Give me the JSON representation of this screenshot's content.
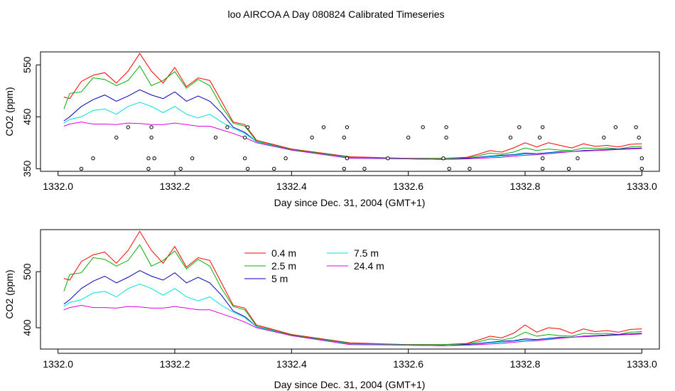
{
  "figure_title": "loo AIRCOA A  Day 080824  Calibrated Timeseries",
  "legend_items": [
    {
      "label": "0.4 m",
      "color": "#ff0000"
    },
    {
      "label": "2.5 m",
      "color": "#00b000"
    },
    {
      "label": "5 m",
      "color": "#0000c0"
    },
    {
      "label": "7.5 m",
      "color": "#00e0e0"
    },
    {
      "label": "24.4 m",
      "color": "#e000e0"
    }
  ],
  "chart_data": [
    {
      "type": "line",
      "title": "",
      "xlabel": "Day since Dec. 31, 2004 (GMT+1)",
      "ylabel": "CO2 (ppm)",
      "xlim": [
        1331.97,
        1333.03
      ],
      "ylim": [
        345,
        575
      ],
      "xticks": [
        "1332.0",
        "1332.2",
        "1332.4",
        "1332.6",
        "1332.8",
        "1333.0"
      ],
      "yticks": [
        "350",
        "450",
        "550"
      ],
      "grid": false,
      "legend": "none",
      "marker_series": {
        "x": [
          1332.04,
          1332.06,
          1332.1,
          1332.12,
          1332.155,
          1332.155,
          1332.16,
          1332.16,
          1332.165,
          1332.21,
          1332.23,
          1332.27,
          1332.29,
          1332.32,
          1332.32,
          1332.325,
          1332.325,
          1332.37,
          1332.39,
          1332.435,
          1332.455,
          1332.49,
          1332.49,
          1332.495,
          1332.495,
          1332.525,
          1332.565,
          1332.6,
          1332.625,
          1332.66,
          1332.665,
          1332.665,
          1332.67,
          1332.705,
          1332.775,
          1332.79,
          1332.825,
          1332.83,
          1332.83,
          1332.83,
          1332.875,
          1332.89,
          1332.935,
          1332.955,
          1332.99,
          1332.995,
          1333.0,
          1333.0
        ],
        "y": [
          350,
          370,
          410,
          430,
          350,
          370,
          430,
          410,
          370,
          350,
          370,
          410,
          430,
          370,
          410,
          350,
          430,
          350,
          370,
          410,
          430,
          350,
          410,
          370,
          430,
          350,
          370,
          410,
          430,
          370,
          410,
          430,
          350,
          350,
          410,
          430,
          410,
          370,
          350,
          430,
          350,
          370,
          410,
          430,
          430,
          410,
          370,
          350
        ]
      },
      "series": [
        {
          "name": "0.4 m",
          "color": "#ff0000",
          "x": [
            1332.01,
            1332.02,
            1332.04,
            1332.06,
            1332.08,
            1332.1,
            1332.12,
            1332.14,
            1332.16,
            1332.18,
            1332.2,
            1332.22,
            1332.24,
            1332.26,
            1332.28,
            1332.3,
            1332.32,
            1332.34,
            1332.4,
            1332.5,
            1332.6,
            1332.66,
            1332.7,
            1332.72,
            1332.74,
            1332.76,
            1332.78,
            1332.8,
            1332.82,
            1332.84,
            1332.86,
            1332.88,
            1332.9,
            1332.92,
            1332.94,
            1332.96,
            1332.98,
            1333.0
          ],
          "y": [
            488,
            485,
            518,
            530,
            535,
            515,
            538,
            572,
            538,
            515,
            545,
            508,
            525,
            520,
            480,
            440,
            435,
            405,
            388,
            373,
            370,
            370,
            372,
            378,
            385,
            382,
            390,
            400,
            392,
            400,
            395,
            390,
            398,
            393,
            395,
            392,
            397,
            398
          ]
        },
        {
          "name": "2.5 m",
          "color": "#00b000",
          "x": [
            1332.01,
            1332.02,
            1332.04,
            1332.06,
            1332.08,
            1332.1,
            1332.12,
            1332.14,
            1332.16,
            1332.18,
            1332.2,
            1332.22,
            1332.24,
            1332.26,
            1332.28,
            1332.3,
            1332.32,
            1332.34,
            1332.4,
            1332.5,
            1332.6,
            1332.66,
            1332.7,
            1332.72,
            1332.74,
            1332.76,
            1332.78,
            1332.8,
            1332.82,
            1332.84,
            1332.86,
            1332.88,
            1332.9,
            1332.92,
            1332.94,
            1332.96,
            1332.98,
            1333.0
          ],
          "y": [
            465,
            495,
            498,
            525,
            522,
            510,
            520,
            548,
            510,
            520,
            537,
            505,
            522,
            510,
            470,
            438,
            432,
            403,
            387,
            372,
            370,
            370,
            371,
            375,
            380,
            378,
            382,
            390,
            385,
            388,
            386,
            385,
            390,
            389,
            390,
            388,
            392,
            393
          ]
        },
        {
          "name": "5 m",
          "color": "#0000c0",
          "x": [
            1332.01,
            1332.02,
            1332.04,
            1332.06,
            1332.08,
            1332.1,
            1332.12,
            1332.14,
            1332.16,
            1332.18,
            1332.2,
            1332.22,
            1332.24,
            1332.26,
            1332.28,
            1332.3,
            1332.32,
            1332.34,
            1332.4,
            1332.5,
            1332.6,
            1332.66,
            1332.7,
            1332.72,
            1332.74,
            1332.76,
            1332.78,
            1332.8,
            1332.82,
            1332.84,
            1332.86,
            1332.88,
            1332.9,
            1332.92,
            1332.94,
            1332.96,
            1332.98,
            1333.0
          ],
          "y": [
            442,
            450,
            470,
            483,
            492,
            480,
            490,
            502,
            492,
            485,
            498,
            480,
            490,
            480,
            458,
            430,
            420,
            402,
            386,
            371,
            369,
            368,
            370,
            372,
            374,
            376,
            377,
            380,
            379,
            381,
            383,
            383,
            385,
            386,
            387,
            388,
            389,
            390
          ]
        },
        {
          "name": "7.5 m",
          "color": "#00e0e0",
          "x": [
            1332.01,
            1332.02,
            1332.04,
            1332.06,
            1332.08,
            1332.1,
            1332.12,
            1332.14,
            1332.16,
            1332.18,
            1332.2,
            1332.22,
            1332.24,
            1332.26,
            1332.28,
            1332.3,
            1332.32,
            1332.34,
            1332.4,
            1332.5,
            1332.6,
            1332.66,
            1332.7,
            1332.72,
            1332.74,
            1332.76,
            1332.78,
            1332.8,
            1332.82,
            1332.84,
            1332.86,
            1332.88,
            1332.9,
            1332.92,
            1332.94,
            1332.96,
            1332.98,
            1333.0
          ],
          "y": [
            438,
            445,
            450,
            462,
            465,
            455,
            470,
            478,
            470,
            458,
            470,
            455,
            448,
            455,
            440,
            428,
            418,
            402,
            386,
            371,
            369,
            368,
            369,
            371,
            373,
            374,
            376,
            378,
            378,
            380,
            382,
            383,
            384,
            385,
            386,
            387,
            388,
            389
          ]
        },
        {
          "name": "24.4 m",
          "color": "#e000e0",
          "x": [
            1332.01,
            1332.02,
            1332.04,
            1332.06,
            1332.08,
            1332.1,
            1332.12,
            1332.14,
            1332.16,
            1332.18,
            1332.2,
            1332.22,
            1332.24,
            1332.26,
            1332.28,
            1332.3,
            1332.32,
            1332.34,
            1332.4,
            1332.5,
            1332.6,
            1332.66,
            1332.7,
            1332.72,
            1332.74,
            1332.76,
            1332.78,
            1332.8,
            1332.82,
            1332.84,
            1332.86,
            1332.88,
            1332.9,
            1332.92,
            1332.94,
            1332.96,
            1332.98,
            1333.0
          ],
          "y": [
            432,
            436,
            440,
            436,
            436,
            435,
            438,
            437,
            435,
            435,
            438,
            435,
            432,
            432,
            425,
            418,
            410,
            400,
            386,
            370,
            369,
            368,
            369,
            370,
            371,
            372,
            374,
            376,
            377,
            379,
            381,
            383,
            384,
            385,
            386,
            387,
            388,
            389
          ]
        }
      ]
    },
    {
      "type": "line",
      "title": "",
      "xlabel": "Day since Dec. 31, 2004 (GMT+1)",
      "ylabel": "CO2 (ppm)",
      "xlim": [
        1331.97,
        1333.03
      ],
      "ylim": [
        362,
        575
      ],
      "xticks": [
        "1332.0",
        "1332.2",
        "1332.4",
        "1332.6",
        "1332.8",
        "1333.0"
      ],
      "yticks": [
        "400",
        "500"
      ],
      "grid": false,
      "legend": "top-center",
      "series": [
        {
          "name": "0.4 m",
          "color": "#ff0000",
          "x": [
            1332.01,
            1332.02,
            1332.04,
            1332.06,
            1332.08,
            1332.1,
            1332.12,
            1332.14,
            1332.16,
            1332.18,
            1332.2,
            1332.22,
            1332.24,
            1332.26,
            1332.28,
            1332.3,
            1332.32,
            1332.34,
            1332.4,
            1332.5,
            1332.6,
            1332.66,
            1332.7,
            1332.72,
            1332.74,
            1332.76,
            1332.78,
            1332.8,
            1332.82,
            1332.84,
            1332.86,
            1332.88,
            1332.9,
            1332.92,
            1332.94,
            1332.96,
            1332.98,
            1333.0
          ],
          "y": [
            488,
            485,
            518,
            530,
            535,
            515,
            538,
            572,
            538,
            515,
            545,
            508,
            525,
            520,
            480,
            440,
            435,
            405,
            388,
            373,
            370,
            370,
            372,
            378,
            385,
            382,
            390,
            405,
            392,
            400,
            398,
            390,
            398,
            393,
            395,
            392,
            397,
            398
          ]
        },
        {
          "name": "2.5 m",
          "color": "#00b000",
          "x": [
            1332.01,
            1332.02,
            1332.04,
            1332.06,
            1332.08,
            1332.1,
            1332.12,
            1332.14,
            1332.16,
            1332.18,
            1332.2,
            1332.22,
            1332.24,
            1332.26,
            1332.28,
            1332.3,
            1332.32,
            1332.34,
            1332.4,
            1332.5,
            1332.6,
            1332.66,
            1332.7,
            1332.72,
            1332.74,
            1332.76,
            1332.78,
            1332.8,
            1332.82,
            1332.84,
            1332.86,
            1332.88,
            1332.9,
            1332.92,
            1332.94,
            1332.96,
            1332.98,
            1333.0
          ],
          "y": [
            465,
            495,
            498,
            525,
            522,
            510,
            520,
            548,
            510,
            520,
            537,
            505,
            522,
            510,
            470,
            438,
            432,
            403,
            387,
            372,
            370,
            370,
            371,
            375,
            380,
            378,
            382,
            392,
            385,
            388,
            386,
            385,
            390,
            389,
            390,
            388,
            392,
            393
          ]
        },
        {
          "name": "5 m",
          "color": "#0000c0",
          "x": [
            1332.01,
            1332.02,
            1332.04,
            1332.06,
            1332.08,
            1332.1,
            1332.12,
            1332.14,
            1332.16,
            1332.18,
            1332.2,
            1332.22,
            1332.24,
            1332.26,
            1332.28,
            1332.3,
            1332.32,
            1332.34,
            1332.4,
            1332.5,
            1332.6,
            1332.66,
            1332.7,
            1332.72,
            1332.74,
            1332.76,
            1332.78,
            1332.8,
            1332.82,
            1332.84,
            1332.86,
            1332.88,
            1332.9,
            1332.92,
            1332.94,
            1332.96,
            1332.98,
            1333.0
          ],
          "y": [
            442,
            450,
            470,
            483,
            492,
            480,
            490,
            502,
            492,
            485,
            498,
            480,
            490,
            480,
            458,
            430,
            420,
            402,
            386,
            371,
            369,
            368,
            370,
            372,
            374,
            376,
            377,
            380,
            379,
            381,
            383,
            383,
            385,
            386,
            387,
            388,
            389,
            390
          ]
        },
        {
          "name": "7.5 m",
          "color": "#00e0e0",
          "x": [
            1332.01,
            1332.02,
            1332.04,
            1332.06,
            1332.08,
            1332.1,
            1332.12,
            1332.14,
            1332.16,
            1332.18,
            1332.2,
            1332.22,
            1332.24,
            1332.26,
            1332.28,
            1332.3,
            1332.32,
            1332.34,
            1332.4,
            1332.5,
            1332.6,
            1332.66,
            1332.7,
            1332.72,
            1332.74,
            1332.76,
            1332.78,
            1332.8,
            1332.82,
            1332.84,
            1332.86,
            1332.88,
            1332.9,
            1332.92,
            1332.94,
            1332.96,
            1332.98,
            1333.0
          ],
          "y": [
            438,
            445,
            450,
            462,
            465,
            455,
            470,
            478,
            470,
            458,
            470,
            455,
            448,
            455,
            440,
            428,
            418,
            402,
            386,
            371,
            369,
            368,
            369,
            371,
            373,
            374,
            376,
            378,
            378,
            380,
            382,
            383,
            384,
            385,
            386,
            387,
            388,
            389
          ]
        },
        {
          "name": "24.4 m",
          "color": "#e000e0",
          "x": [
            1332.01,
            1332.02,
            1332.04,
            1332.06,
            1332.08,
            1332.1,
            1332.12,
            1332.14,
            1332.16,
            1332.18,
            1332.2,
            1332.22,
            1332.24,
            1332.26,
            1332.28,
            1332.3,
            1332.32,
            1332.34,
            1332.4,
            1332.5,
            1332.6,
            1332.66,
            1332.7,
            1332.72,
            1332.74,
            1332.76,
            1332.78,
            1332.8,
            1332.82,
            1332.84,
            1332.86,
            1332.88,
            1332.9,
            1332.92,
            1332.94,
            1332.96,
            1332.98,
            1333.0
          ],
          "y": [
            432,
            436,
            440,
            436,
            436,
            435,
            438,
            437,
            435,
            435,
            438,
            435,
            432,
            432,
            425,
            418,
            410,
            400,
            386,
            370,
            369,
            368,
            369,
            370,
            371,
            372,
            374,
            376,
            377,
            379,
            381,
            383,
            384,
            385,
            386,
            387,
            388,
            389
          ]
        }
      ]
    }
  ]
}
